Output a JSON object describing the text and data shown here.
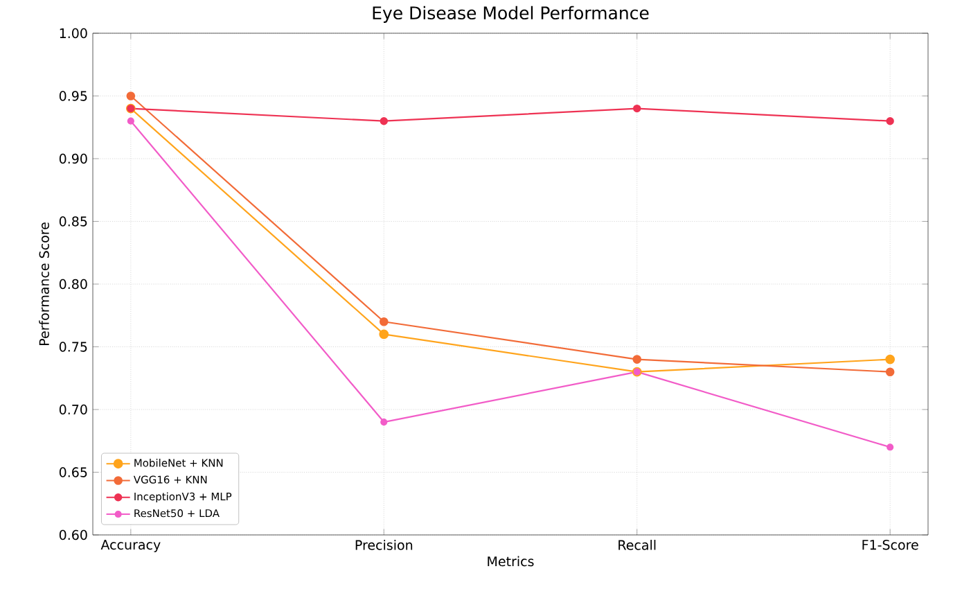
{
  "chart_data": {
    "type": "line",
    "title": "Eye Disease Model Performance",
    "xlabel": "Metrics",
    "ylabel": "Performance Score",
    "categories": [
      "Accuracy",
      "Precision",
      "Recall",
      "F1-Score"
    ],
    "series": [
      {
        "name": "MobileNet + KNN",
        "color": "#ffa41c",
        "values": [
          0.94,
          0.76,
          0.73,
          0.74
        ]
      },
      {
        "name": "VGG16 + KNN",
        "color": "#f26b38",
        "values": [
          0.95,
          0.77,
          0.74,
          0.73
        ]
      },
      {
        "name": "InceptionV3 + MLP",
        "color": "#ee3253",
        "values": [
          0.94,
          0.93,
          0.94,
          0.93
        ]
      },
      {
        "name": "ResNet50 + LDA",
        "color": "#f25cc8",
        "values": [
          0.93,
          0.69,
          0.73,
          0.67
        ]
      }
    ],
    "ylim": [
      0.6,
      1.0
    ],
    "yticks": [
      {
        "value": 0.6,
        "label": "0.60"
      },
      {
        "value": 0.65,
        "label": "0.65"
      },
      {
        "value": 0.7,
        "label": "0.70"
      },
      {
        "value": 0.75,
        "label": "0.75"
      },
      {
        "value": 0.8,
        "label": "0.80"
      },
      {
        "value": 0.85,
        "label": "0.85"
      },
      {
        "value": 0.9,
        "label": "0.90"
      },
      {
        "value": 0.95,
        "label": "0.95"
      },
      {
        "value": 1.0,
        "label": "1.00"
      }
    ],
    "grid": true,
    "legend": "bottom left",
    "marker": "circle",
    "line_style": "solid"
  }
}
